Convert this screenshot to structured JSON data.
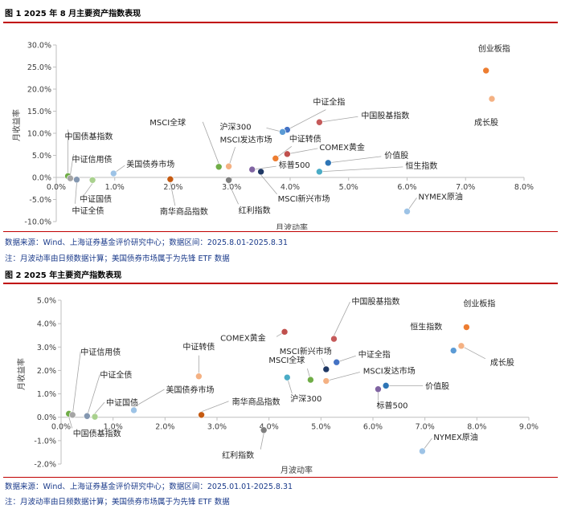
{
  "figure1": {
    "title": "图 1 2025 年 8 月主要资产指数表现",
    "source": "数据来源：Wind、上海证券基金评价研究中心；数据区间：2025.8.01-2025.8.31",
    "note": "注：月波动率由日频数据计算；美国债券市场属于为先锋 ETF 数据"
  },
  "figure2": {
    "title": "图 2 2025 年主要资产指数表现",
    "source": "数据来源：Wind、上海证券基金评价研究中心；数据区间：2025.01.01-2025.8.31",
    "note": "注：月波动率由日频数据计算；美国债券市场属于为先锋 ETF 数据"
  },
  "chart_data": [
    {
      "type": "scatter",
      "xlabel": "月波动率",
      "ylabel": "月收益率",
      "xlim": [
        0,
        8
      ],
      "ylim": [
        -10,
        30
      ],
      "x_ticks": [
        0,
        1,
        2,
        3,
        4,
        5,
        6,
        7,
        8
      ],
      "y_ticks": [
        -10,
        -5,
        0,
        5,
        10,
        15,
        20,
        25,
        30
      ],
      "x_tick_labels": [
        "0.0%",
        "1.0%",
        "2.0%",
        "3.0%",
        "4.0%",
        "5.0%",
        "6.0%",
        "7.0%",
        "8.0%"
      ],
      "y_tick_labels": [
        "-10.0%",
        "-5.0%",
        "0.0%",
        "5.0%",
        "10.0%",
        "15.0%",
        "20.0%",
        "25.0%",
        "30.0%"
      ],
      "grid": false,
      "points": [
        {
          "name": "创业板指",
          "x": 7.35,
          "y": 24.2,
          "color": "#ed7d31"
        },
        {
          "name": "成长股",
          "x": 7.45,
          "y": 17.8,
          "color": "#f4b183"
        },
        {
          "name": "中证全指",
          "x": 3.95,
          "y": 10.8,
          "color": "#4472c4"
        },
        {
          "name": "沪深300",
          "x": 3.87,
          "y": 10.3,
          "color": "#5b9bd5"
        },
        {
          "name": "中国股基指数",
          "x": 4.5,
          "y": 12.5,
          "color": "#c55a5a"
        },
        {
          "name": "中证转债",
          "x": 3.75,
          "y": 4.3,
          "color": "#ed7d31"
        },
        {
          "name": "COMEX黄金",
          "x": 3.95,
          "y": 5.3,
          "color": "#c0504d"
        },
        {
          "name": "MSCI全球",
          "x": 2.78,
          "y": 2.4,
          "color": "#70ad47"
        },
        {
          "name": "MSCI发达市场",
          "x": 2.95,
          "y": 2.5,
          "color": "#f4b183"
        },
        {
          "name": "标普500",
          "x": 3.35,
          "y": 1.8,
          "color": "#8064a2"
        },
        {
          "name": "MSCI新兴市场",
          "x": 3.5,
          "y": 1.3,
          "color": "#1f3864"
        },
        {
          "name": "价值股",
          "x": 4.65,
          "y": 3.3,
          "color": "#2e75b6"
        },
        {
          "name": "恒生指数",
          "x": 4.5,
          "y": 1.3,
          "color": "#4bacc6"
        },
        {
          "name": "红利指数",
          "x": 2.95,
          "y": -0.6,
          "color": "#7f7f7f"
        },
        {
          "name": "南华商品指数",
          "x": 1.95,
          "y": -0.4,
          "color": "#c55a11"
        },
        {
          "name": "中国债基指数",
          "x": 0.2,
          "y": 0.3,
          "color": "#70ad47"
        },
        {
          "name": "中证信用债",
          "x": 0.24,
          "y": -0.2,
          "color": "#a5a5a5"
        },
        {
          "name": "中证全债",
          "x": 0.35,
          "y": -0.5,
          "color": "#8497b0"
        },
        {
          "name": "中证国债",
          "x": 0.62,
          "y": -0.6,
          "color": "#a9d18e"
        },
        {
          "name": "美国债券市场",
          "x": 0.98,
          "y": 0.9,
          "color": "#9dc3e6"
        },
        {
          "name": "NYMEX原油",
          "x": 6.0,
          "y": -7.7,
          "color": "#9dc3e6"
        }
      ]
    },
    {
      "type": "scatter",
      "xlabel": "月波动率",
      "ylabel": "月收益率",
      "xlim": [
        0,
        9
      ],
      "ylim": [
        -2,
        5
      ],
      "x_ticks": [
        0,
        1,
        2,
        3,
        4,
        5,
        6,
        7,
        8,
        9
      ],
      "y_ticks": [
        -2,
        -1,
        0,
        1,
        2,
        3,
        4,
        5
      ],
      "x_tick_labels": [
        "0.0%",
        "1.0%",
        "2.0%",
        "3.0%",
        "4.0%",
        "5.0%",
        "6.0%",
        "7.0%",
        "8.0%",
        "9.0%"
      ],
      "y_tick_labels": [
        "-2.0%",
        "-1.0%",
        "0.0%",
        "1.0%",
        "2.0%",
        "3.0%",
        "4.0%",
        "5.0%"
      ],
      "grid": false,
      "points": [
        {
          "name": "创业板指",
          "x": 7.8,
          "y": 3.85,
          "color": "#ed7d31"
        },
        {
          "name": "恒生指数",
          "x": 7.55,
          "y": 2.85,
          "color": "#5b9bd5"
        },
        {
          "name": "成长股",
          "x": 7.7,
          "y": 3.05,
          "color": "#f4b183"
        },
        {
          "name": "中国股基指数",
          "x": 5.25,
          "y": 3.35,
          "color": "#c55a5a"
        },
        {
          "name": "COMEX黄金",
          "x": 4.3,
          "y": 3.65,
          "color": "#c0504d"
        },
        {
          "name": "MSCI新兴市场",
          "x": 5.1,
          "y": 2.05,
          "color": "#1f3864"
        },
        {
          "name": "中证全指",
          "x": 5.3,
          "y": 2.35,
          "color": "#4472c4"
        },
        {
          "name": "MSCI全球",
          "x": 4.8,
          "y": 1.6,
          "color": "#70ad47"
        },
        {
          "name": "沪深300",
          "x": 4.35,
          "y": 1.7,
          "color": "#4bacc6"
        },
        {
          "name": "MSCI发达市场",
          "x": 5.1,
          "y": 1.55,
          "color": "#f4b183"
        },
        {
          "name": "价值股",
          "x": 6.25,
          "y": 1.35,
          "color": "#2e75b6"
        },
        {
          "name": "标普500",
          "x": 6.1,
          "y": 1.2,
          "color": "#8064a2"
        },
        {
          "name": "中证转债",
          "x": 2.65,
          "y": 1.75,
          "color": "#f4b183"
        },
        {
          "name": "美国债券市场",
          "x": 1.4,
          "y": 0.3,
          "color": "#9dc3e6"
        },
        {
          "name": "南华商品指数",
          "x": 2.7,
          "y": 0.1,
          "color": "#c55a11"
        },
        {
          "name": "红利指数",
          "x": 3.9,
          "y": -0.55,
          "color": "#7f7f7f"
        },
        {
          "name": "中国债基指数",
          "x": 0.15,
          "y": 0.15,
          "color": "#70ad47"
        },
        {
          "name": "中证信用债",
          "x": 0.22,
          "y": 0.1,
          "color": "#a5a5a5"
        },
        {
          "name": "中证全债",
          "x": 0.5,
          "y": 0.05,
          "color": "#8497b0"
        },
        {
          "name": "中证国债",
          "x": 0.65,
          "y": 0.02,
          "color": "#a9d18e"
        },
        {
          "name": "NYMEX原油",
          "x": 6.95,
          "y": -1.45,
          "color": "#9dc3e6"
        }
      ]
    }
  ]
}
